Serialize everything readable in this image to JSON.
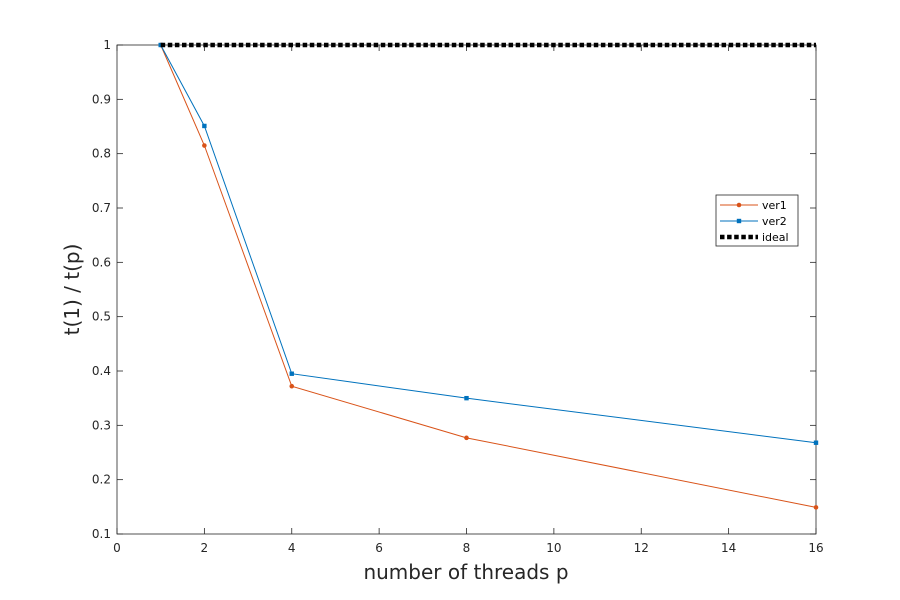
{
  "chart_data": {
    "type": "line",
    "title": "",
    "xlabel": "number of threads p",
    "ylabel": "t(1) / t(p)",
    "xlim": [
      0,
      16
    ],
    "ylim": [
      0.1,
      1
    ],
    "xticks": [
      0,
      2,
      4,
      6,
      8,
      10,
      12,
      14,
      16
    ],
    "yticks": [
      0.1,
      0.2,
      0.3,
      0.4,
      0.5,
      0.6,
      0.7,
      0.8,
      0.9,
      1
    ],
    "grid": false,
    "legend_position": "right",
    "series": [
      {
        "name": "ver1",
        "color": "#D95319",
        "marker": "dot",
        "line_style": "solid",
        "x": [
          1,
          2,
          4,
          8,
          16
        ],
        "y": [
          1.0,
          0.815,
          0.372,
          0.277,
          0.149
        ]
      },
      {
        "name": "ver2",
        "color": "#0072BD",
        "marker": "square",
        "line_style": "solid",
        "x": [
          1,
          2,
          4,
          8,
          16
        ],
        "y": [
          1.0,
          0.851,
          0.395,
          0.35,
          0.268
        ]
      },
      {
        "name": "ideal",
        "color": "#000000",
        "marker": "none",
        "line_style": "dotted",
        "x": [
          1,
          16
        ],
        "y": [
          1.0,
          1.0
        ]
      }
    ]
  }
}
